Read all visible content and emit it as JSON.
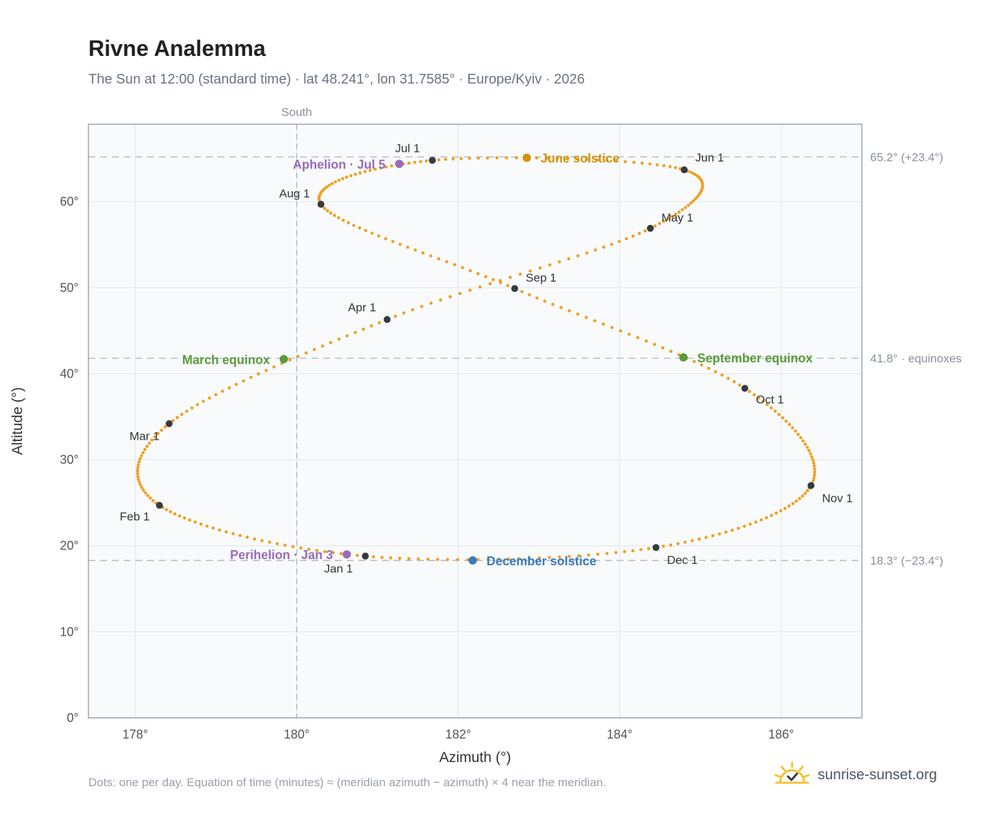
{
  "header": {
    "title": "Rivne Analemma",
    "subtitle": "The Sun at 12:00 (standard time) · lat 48.241°, lon 31.7585° · Europe/Kyiv · 2026"
  },
  "footer": {
    "note": "Dots: one per day. Equation of time (minutes) ≈ (meridian azimuth − azimuth) × 4 near the meridian.",
    "brand": "sunrise-sunset.org",
    "brand_icon": "sun-check-icon"
  },
  "colors": {
    "curve": "#f0a020",
    "month_dot": "#333a40",
    "solstice_june": "#d4920a",
    "solstice_dec": "#3a7abf",
    "equinox": "#5a9a3a",
    "apsis": "#9a6ab8",
    "plot_bg": "#f8fafc",
    "grid": "#e3e8ee",
    "ref_line": "#a9b3bf"
  },
  "chart_data": {
    "type": "scatter",
    "xlabel": "Azimuth (°)",
    "ylabel": "Altitude (°)",
    "xlim": [
      177.42,
      187.0
    ],
    "ylim": [
      0,
      69
    ],
    "x_ticks": [
      178,
      180,
      182,
      184,
      186
    ],
    "y_ticks": [
      0,
      10,
      20,
      30,
      40,
      50,
      60
    ],
    "x_tick_labels": [
      "178°",
      "180°",
      "182°",
      "184°",
      "186°"
    ],
    "y_tick_labels": [
      "0°",
      "10°",
      "20°",
      "30°",
      "40°",
      "50°",
      "60°"
    ],
    "grid": true,
    "meridian": {
      "azimuth": 180,
      "label": "South"
    },
    "reference_lines": [
      {
        "altitude": 65.2,
        "label": "65.2° (+23.4°)"
      },
      {
        "altitude": 41.8,
        "label": "41.8° · equinoxes"
      },
      {
        "altitude": 18.3,
        "label": "18.3° (−23.4°)"
      }
    ],
    "series": [
      {
        "style": "daily-dots",
        "points": [
          [
            180.85,
            18.8
          ],
          [
            178.3,
            24.7
          ],
          [
            178.42,
            34.2
          ],
          [
            181.12,
            46.3
          ],
          [
            184.38,
            56.9
          ],
          [
            184.8,
            63.7
          ],
          [
            181.68,
            64.8
          ],
          [
            180.3,
            59.7
          ],
          [
            182.7,
            49.9
          ],
          [
            185.55,
            38.3
          ],
          [
            186.37,
            27.0
          ],
          [
            184.45,
            19.8
          ]
        ]
      }
    ],
    "months": [
      {
        "label": "Jan 1",
        "az": 180.85,
        "alt": 18.8
      },
      {
        "label": "Feb 1",
        "az": 178.3,
        "alt": 24.7
      },
      {
        "label": "Mar 1",
        "az": 178.42,
        "alt": 34.2
      },
      {
        "label": "Apr 1",
        "az": 181.12,
        "alt": 46.3
      },
      {
        "label": "May 1",
        "az": 184.38,
        "alt": 56.9
      },
      {
        "label": "Jun 1",
        "az": 184.8,
        "alt": 63.7
      },
      {
        "label": "Jul 1",
        "az": 181.68,
        "alt": 64.8
      },
      {
        "label": "Aug 1",
        "az": 180.3,
        "alt": 59.7
      },
      {
        "label": "Sep 1",
        "az": 182.7,
        "alt": 49.9
      },
      {
        "label": "Oct 1",
        "az": 185.55,
        "alt": 38.3
      },
      {
        "label": "Nov 1",
        "az": 186.37,
        "alt": 27.0
      },
      {
        "label": "Dec 1",
        "az": 184.45,
        "alt": 19.8
      }
    ],
    "events": [
      {
        "label": "June solstice",
        "az": 182.85,
        "alt": 65.1,
        "kind": "solstice_june",
        "side": "right"
      },
      {
        "label": "December solstice",
        "az": 182.18,
        "alt": 18.3,
        "kind": "solstice_dec",
        "side": "right"
      },
      {
        "label": "March equinox",
        "az": 179.84,
        "alt": 41.7,
        "kind": "equinox",
        "side": "left"
      },
      {
        "label": "September equinox",
        "az": 184.79,
        "alt": 41.9,
        "kind": "equinox",
        "side": "right"
      },
      {
        "label": "Aphelion · Jul 5",
        "az": 181.27,
        "alt": 64.4,
        "kind": "apsis",
        "side": "left"
      },
      {
        "label": "Perihelion · Jan 3",
        "az": 180.62,
        "alt": 19.0,
        "kind": "apsis",
        "side": "left"
      }
    ]
  }
}
